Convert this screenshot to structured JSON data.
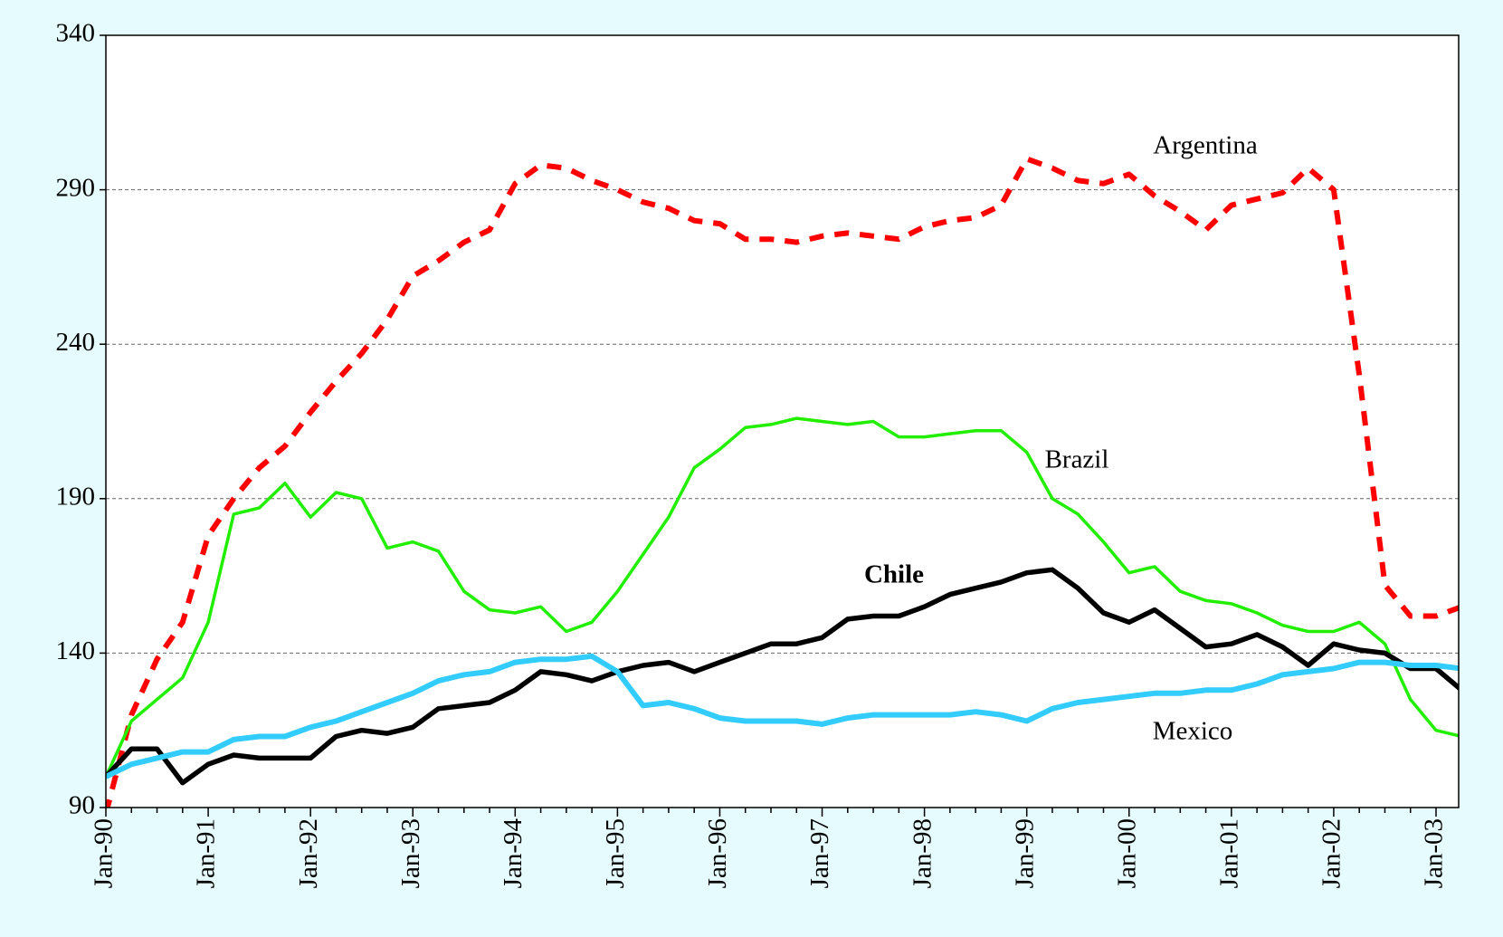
{
  "chart_data": {
    "type": "line",
    "categories": [
      "Jan-90",
      null,
      null,
      null,
      "Jan-91",
      null,
      null,
      null,
      "Jan-92",
      null,
      null,
      null,
      "Jan-93",
      null,
      null,
      null,
      "Jan-94",
      null,
      null,
      null,
      "Jan-95",
      null,
      null,
      null,
      "Jan-96",
      null,
      null,
      null,
      "Jan-97",
      null,
      null,
      null,
      "Jan-98",
      null,
      null,
      null,
      "Jan-99",
      null,
      null,
      null,
      "Jan-00",
      null,
      null,
      null,
      "Jan-01",
      null,
      null,
      null,
      "Jan-02",
      null,
      null,
      null,
      "Jan-03",
      null
    ],
    "series": [
      {
        "name": "Argentina",
        "color": "#ff0000",
        "dashed": true,
        "values": [
          88,
          120,
          138,
          150,
          178,
          190,
          200,
          207,
          218,
          228,
          237,
          248,
          262,
          267,
          273,
          277,
          292,
          298,
          297,
          293,
          290,
          286,
          284,
          280,
          279,
          274,
          274,
          273,
          275,
          276,
          275,
          274,
          278,
          280,
          281,
          285,
          300,
          297,
          293,
          292,
          295,
          288,
          283,
          277,
          285,
          287,
          289,
          297,
          290,
          230,
          162,
          152,
          152,
          155
        ]
      },
      {
        "name": "Brazil",
        "color": "#22ee00",
        "values": [
          100,
          118,
          125,
          132,
          150,
          185,
          187,
          195,
          184,
          192,
          190,
          174,
          176,
          173,
          160,
          154,
          153,
          155,
          147,
          150,
          160,
          172,
          184,
          200,
          206,
          213,
          214,
          216,
          215,
          214,
          215,
          210,
          210,
          211,
          212,
          212,
          205,
          190,
          185,
          176,
          166,
          168,
          160,
          157,
          156,
          153,
          149,
          147,
          147,
          150,
          143,
          125,
          115,
          113
        ]
      },
      {
        "name": "Chile",
        "color": "#000000",
        "bold": true,
        "values": [
          100,
          109,
          109,
          98,
          104,
          107,
          106,
          106,
          106,
          113,
          115,
          114,
          116,
          122,
          123,
          124,
          128,
          134,
          133,
          131,
          134,
          136,
          137,
          134,
          137,
          140,
          143,
          143,
          145,
          151,
          152,
          152,
          155,
          159,
          161,
          163,
          166,
          167,
          161,
          153,
          150,
          154,
          148,
          142,
          143,
          146,
          142,
          136,
          143,
          141,
          140,
          135,
          135,
          128
        ]
      },
      {
        "name": "Mexico",
        "color": "#33ccff",
        "values": [
          100,
          104,
          106,
          108,
          108,
          112,
          113,
          113,
          116,
          118,
          121,
          124,
          127,
          131,
          133,
          134,
          137,
          138,
          138,
          139,
          134,
          123,
          124,
          122,
          119,
          118,
          118,
          118,
          117,
          119,
          120,
          120,
          120,
          120,
          121,
          120,
          118,
          122,
          124,
          125,
          126,
          127,
          127,
          128,
          128,
          130,
          133,
          134,
          135,
          137,
          137,
          136,
          136,
          135
        ]
      }
    ],
    "ylim": [
      90,
      340
    ],
    "yticks": [
      90,
      140,
      190,
      240,
      290,
      340
    ],
    "grid": true
  }
}
